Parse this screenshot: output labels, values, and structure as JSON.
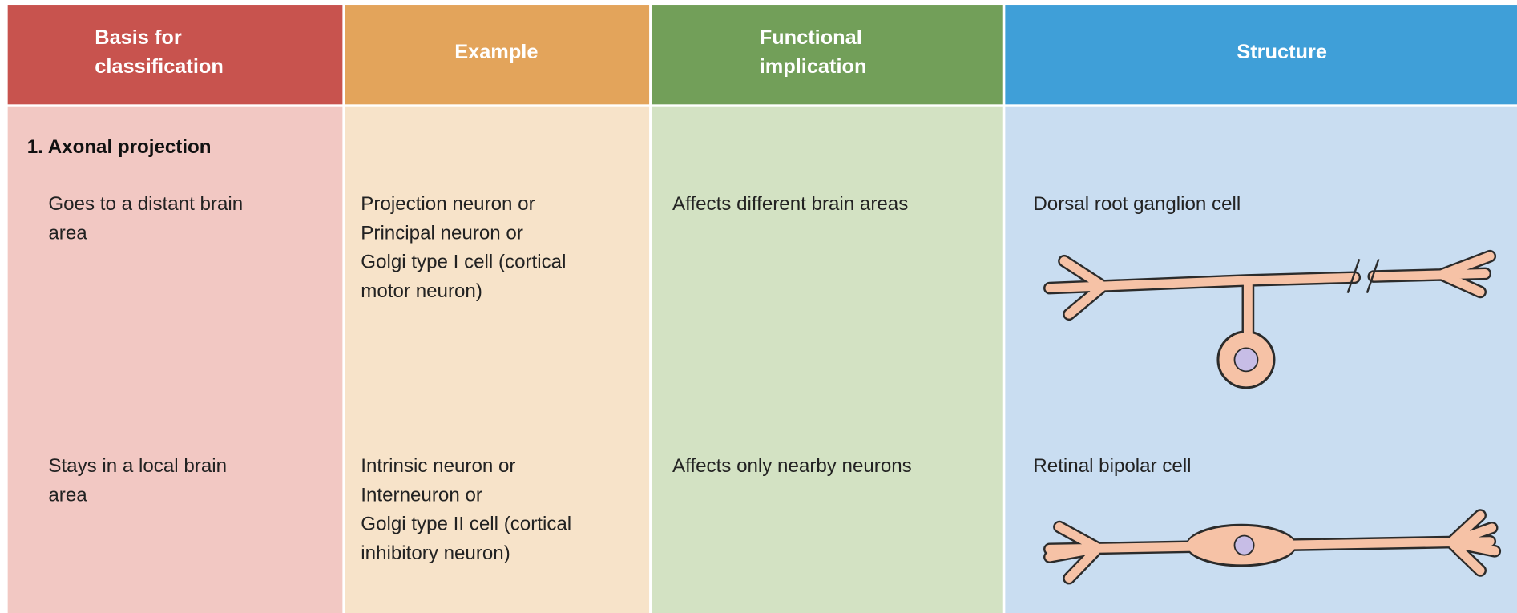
{
  "table": {
    "headers": [
      [
        "Basis for",
        "classification"
      ],
      [
        "Example"
      ],
      [
        "Functional",
        "implication"
      ],
      [
        "Structure"
      ]
    ],
    "section": "1. Axonal projection",
    "rows": [
      [
        [
          "Goes to a distant brain",
          "area"
        ],
        [
          "Projection neuron or",
          "Principal neuron or",
          "Golgi type I cell (cortical",
          "motor neuron)"
        ],
        [
          "Affects different brain areas"
        ],
        [
          "Dorsal root ganglion cell"
        ]
      ],
      [
        [
          "Stays in a local brain",
          "area"
        ],
        [
          "Intrinsic neuron or",
          "Interneuron or",
          "Golgi type II cell (cortical",
          "inhibitory neuron)"
        ],
        [
          "Affects only nearby neurons"
        ],
        [
          "Retinal bipolar cell"
        ]
      ]
    ]
  }
}
